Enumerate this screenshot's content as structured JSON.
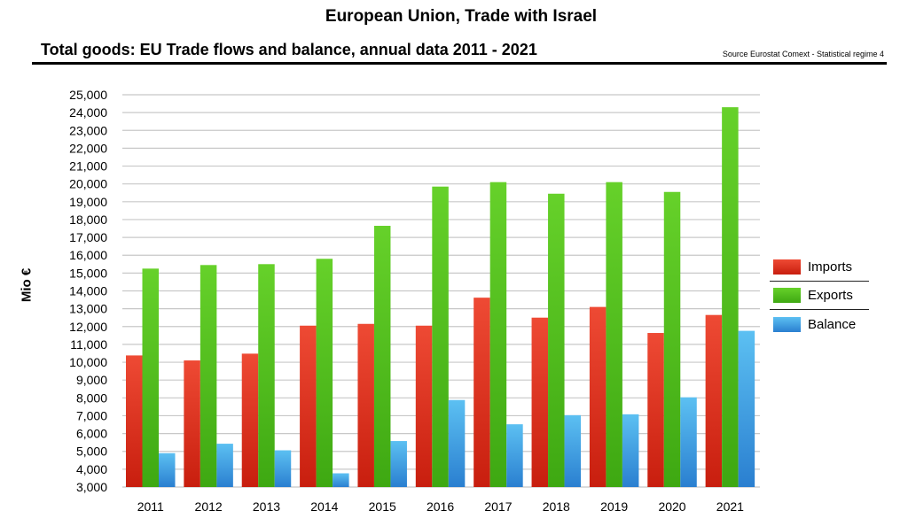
{
  "header": {
    "title": "European Union, Trade with Israel",
    "subtitle": "Total goods: EU Trade flows and balance, annual data 2011 - 2021",
    "source": "Source Eurostat Comext  - Statistical regime 4"
  },
  "colors": {
    "imports": "#e8321e",
    "exports": "#55c51b",
    "balance": "#45aee8"
  },
  "legend": {
    "imports_label": "Imports",
    "exports_label": "Exports",
    "balance_label": "Balance"
  },
  "chart_data": {
    "type": "bar",
    "title": "Total goods: EU Trade flows and balance, annual data 2011 - 2021",
    "xlabel": "",
    "ylabel": "Mio €",
    "ylim": [
      3000,
      25000
    ],
    "ytick_step": 1000,
    "grid": true,
    "legend_position": "right",
    "categories": [
      "2011",
      "2012",
      "2013",
      "2014",
      "2015",
      "2016",
      "2017",
      "2018",
      "2019",
      "2020",
      "2021"
    ],
    "series": [
      {
        "name": "Imports",
        "values": [
          10380,
          10100,
          10480,
          12050,
          12150,
          12050,
          13620,
          12500,
          13100,
          11640,
          12650
        ]
      },
      {
        "name": "Exports",
        "values": [
          15250,
          15450,
          15500,
          15800,
          17650,
          19850,
          20100,
          19450,
          20100,
          19550,
          24300
        ]
      },
      {
        "name": "Balance",
        "values": [
          4900,
          5430,
          5060,
          3770,
          5580,
          7880,
          6520,
          7030,
          7080,
          8030,
          11760
        ]
      }
    ]
  }
}
